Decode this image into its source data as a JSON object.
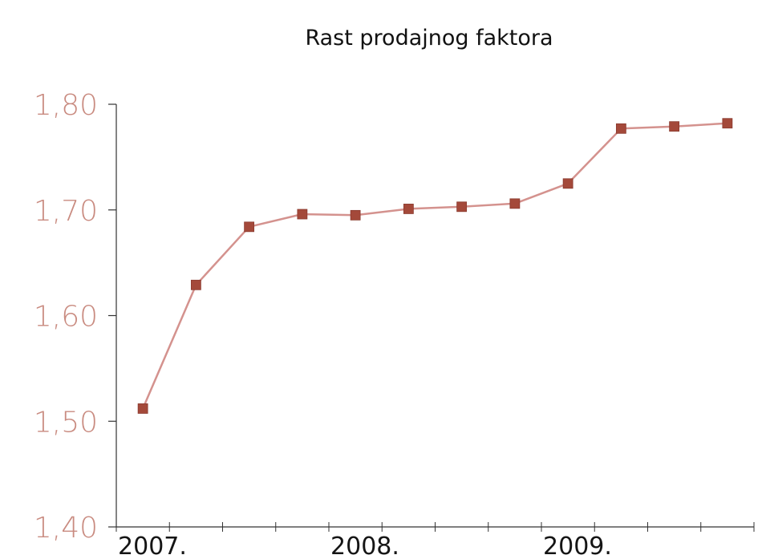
{
  "chart_data": {
    "type": "line",
    "title": "Rast prodajnog faktora",
    "xlabel": "",
    "ylabel": "",
    "ylim": [
      1.4,
      1.8
    ],
    "y_ticks": [
      "1,40",
      "1,50",
      "1,60",
      "1,70",
      "1,80"
    ],
    "x_ticks": [
      "2007.",
      "2008.",
      "2009."
    ],
    "grid": false,
    "legend": "none",
    "colors": {
      "line": "#d4928e",
      "marker": "#a4493a",
      "axis": "#333333",
      "tick_label": "#c98b80"
    },
    "series": [
      {
        "values": [
          1.512,
          1.629,
          1.684,
          1.696,
          1.695,
          1.701,
          1.703,
          1.706,
          1.725,
          1.777,
          1.779,
          1.782
        ]
      }
    ]
  }
}
